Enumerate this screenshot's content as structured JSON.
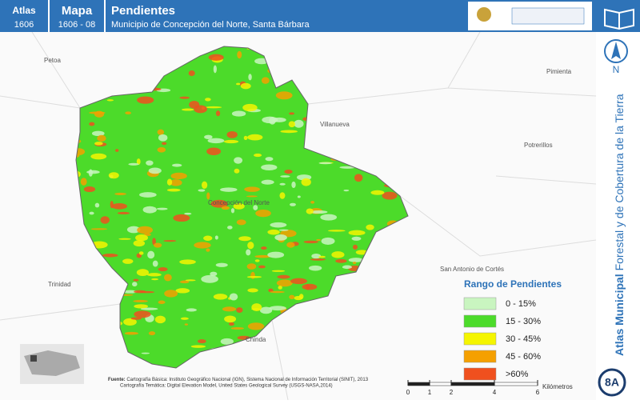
{
  "header": {
    "atlas_label": "Atlas",
    "atlas_code": "1606",
    "map_label": "Mapa",
    "map_code": "1606 - 08",
    "title": "Pendientes",
    "subtitle": "Municipio de Concepción del Norte, Santa Bárbara"
  },
  "place_labels": [
    "Petoa",
    "Pimienta",
    "Villanueva",
    "Potrerillos",
    "Concepción del Norte",
    "San Antonio de Cortés",
    "Trinidad",
    "Chinda"
  ],
  "north": "N",
  "side_title": {
    "bold": "Atlas Municipal",
    "rest": "Forestal y de Cobertura de la Tierra"
  },
  "legend": {
    "title": "Rango de Pendientes",
    "items": [
      {
        "label": "0 - 15%",
        "color": "#c9f5c0"
      },
      {
        "label": "15 - 30%",
        "color": "#4cdb2a"
      },
      {
        "label": "30 - 45%",
        "color": "#f5f500"
      },
      {
        "label": "45 - 60%",
        "color": "#f5a000"
      },
      {
        "label": ">60%",
        "color": "#f0501e"
      }
    ]
  },
  "sources": {
    "label": "Fuente:",
    "line1": "Cartografía Básica: Instituto Geográfico Nacional (IGN), Sistema Nacional de Información Territorial (SINIT), 2013",
    "line2": "Cartografía Temática: Digital Elevation Model, United States Geological Survey (USGS-NASA,2014)"
  },
  "scale_bar": {
    "ticks": [
      0,
      1,
      2,
      4,
      6
    ],
    "unit": "Kilómetros"
  },
  "badge": "8A"
}
